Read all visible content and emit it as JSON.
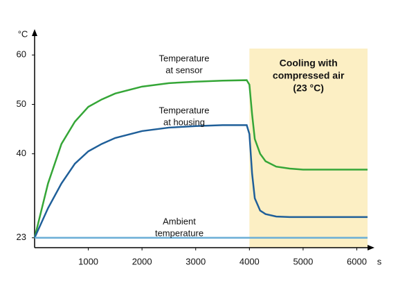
{
  "chart_data": {
    "type": "line",
    "y_unit": "°C",
    "x_unit": "s",
    "x": [
      0,
      250,
      500,
      750,
      1000,
      1250,
      1500,
      2000,
      2500,
      3000,
      3500,
      3950,
      4000,
      4050,
      4100,
      4200,
      4300,
      4500,
      4750,
      5000,
      5500,
      6000,
      6200
    ],
    "series": [
      {
        "name": "Temperature at sensor",
        "name_lines": [
          "Temperature",
          "at sensor"
        ],
        "color": "#35a637",
        "values": [
          23,
          34,
          42,
          46.5,
          49.5,
          51,
          52.2,
          53.6,
          54.3,
          54.6,
          54.8,
          54.9,
          54,
          48,
          43,
          40,
          38.5,
          37.4,
          37,
          36.8,
          36.8,
          36.8,
          36.8
        ]
      },
      {
        "name": "Temperature at housing",
        "name_lines": [
          "Temperature",
          "at housing"
        ],
        "color": "#1f5f99",
        "values": [
          23,
          29,
          34,
          38,
          40.5,
          42,
          43.2,
          44.6,
          45.3,
          45.6,
          45.8,
          45.8,
          44,
          36,
          31,
          28.5,
          27.8,
          27.3,
          27.2,
          27.2,
          27.2,
          27.2,
          27.2
        ]
      },
      {
        "name": "Ambient temperature",
        "name_lines": [
          "Ambient",
          "temperature"
        ],
        "color": "#6aaed6",
        "values": [
          23,
          23,
          23,
          23,
          23,
          23,
          23,
          23,
          23,
          23,
          23,
          23,
          23,
          23,
          23,
          23,
          23,
          23,
          23,
          23,
          23,
          23,
          23
        ]
      }
    ],
    "highlight": {
      "x": [
        4000,
        6200
      ],
      "color": "#fcefc4",
      "label_lines": [
        "Cooling with",
        "compressed air",
        "(23 °C)"
      ]
    },
    "xlim": [
      0,
      6200
    ],
    "xticks": [
      1000,
      2000,
      3000,
      4000,
      5000,
      6000
    ],
    "ylim": [
      21,
      62
    ],
    "yticks": [
      23,
      40,
      50,
      60
    ]
  }
}
